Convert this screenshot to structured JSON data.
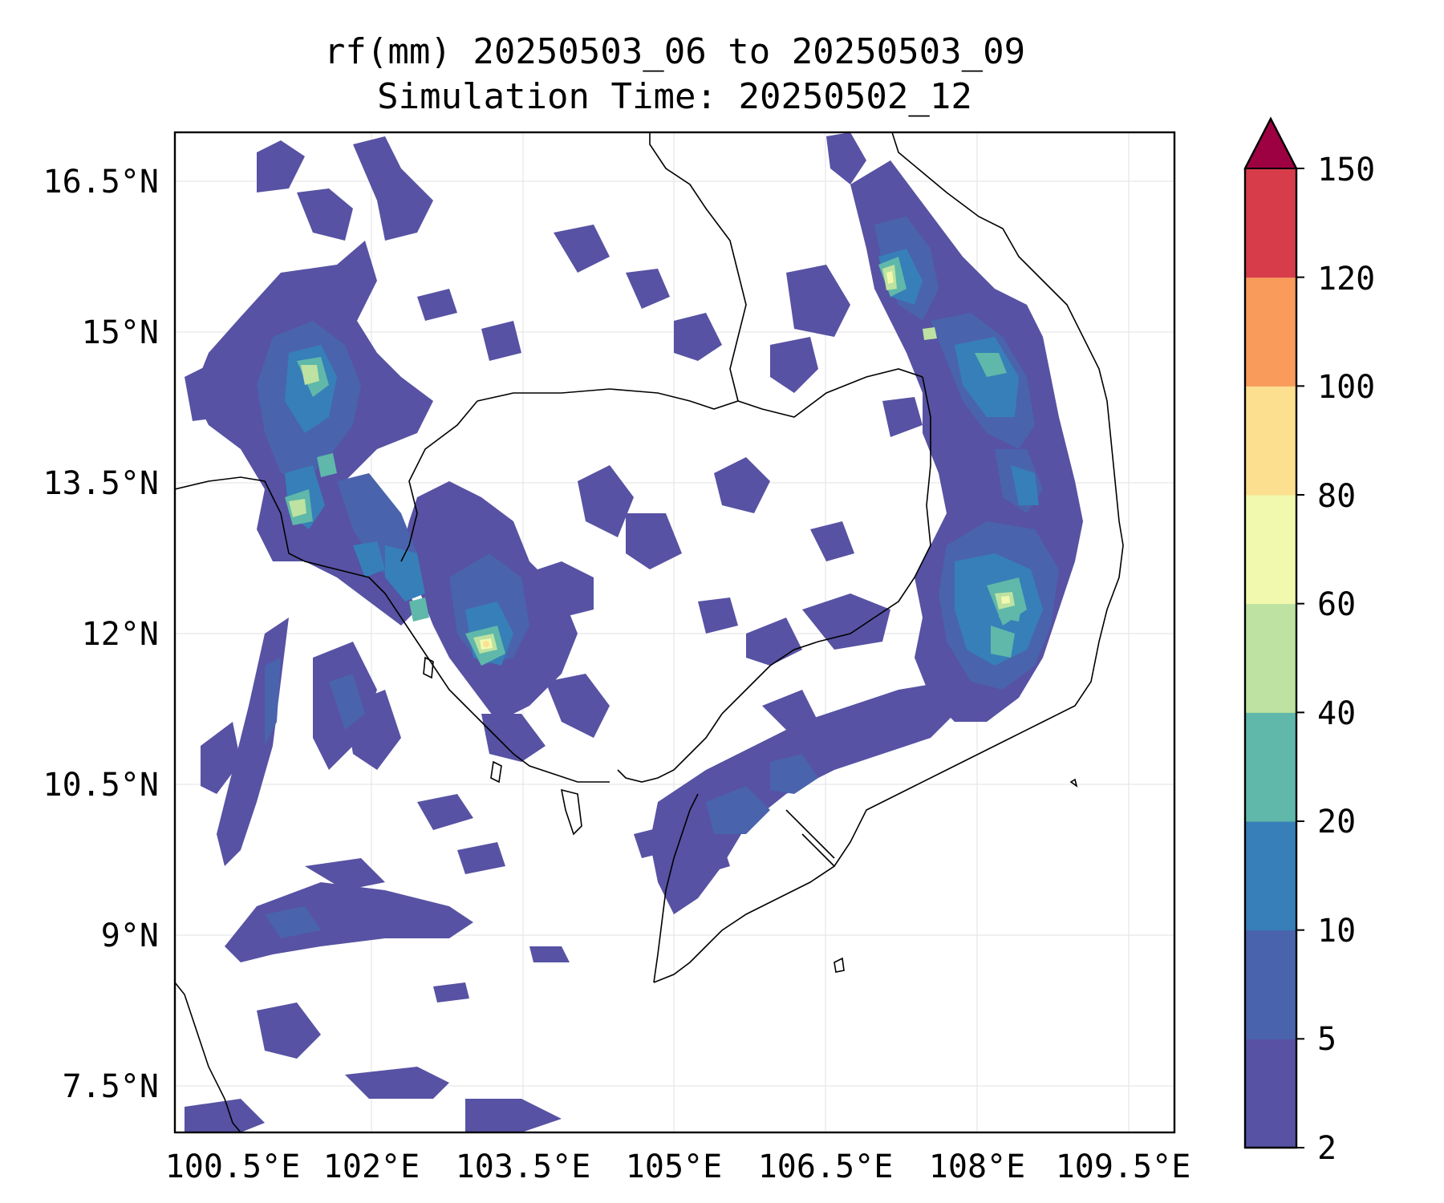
{
  "title": {
    "line1": "rf(mm) 20250503_06 to 20250503_09",
    "line2": "Simulation Time: 20250502_12"
  },
  "axes": {
    "x_ticks": [
      "100.5°E",
      "102°E",
      "103.5°E",
      "105°E",
      "106.5°E",
      "108°E",
      "109.5°E"
    ],
    "y_ticks": [
      "16.5°N",
      "15°N",
      "13.5°N",
      "12°N",
      "10.5°N",
      "9°N",
      "7.5°N"
    ]
  },
  "colorbar": {
    "levels": [
      "2",
      "5",
      "10",
      "20",
      "40",
      "60",
      "80",
      "100",
      "120",
      "150"
    ],
    "colors": [
      "#5752a3",
      "#4a63ad",
      "#377fb8",
      "#5fb8a9",
      "#bde2a1",
      "#f1f9ae",
      "#fcdf8f",
      "#f89b5b",
      "#d63c4a"
    ],
    "extend_color": "#9e0142"
  }
}
